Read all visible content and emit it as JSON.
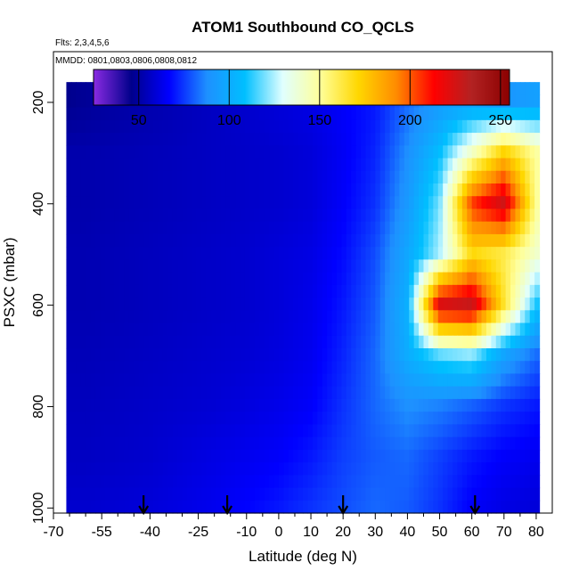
{
  "chart_data": {
    "type": "heatmap",
    "title": "ATOM1 Southbound CO_QCLS",
    "flights_note": "Flts: 2,3,4,5,6",
    "dates_note": "MMDD: 0801,0803,0806,0808,0812",
    "xlabel": "Latitude (deg N)",
    "ylabel": "PSXC (mbar)",
    "xlim": [
      -70,
      85
    ],
    "ylim": [
      1010,
      100
    ],
    "x_ticks": [
      -70,
      -55,
      -40,
      -25,
      -10,
      0,
      10,
      20,
      30,
      40,
      50,
      60,
      70,
      80
    ],
    "x_tick_labels": [
      "-70",
      "-55",
      "-40",
      "-25",
      "-10",
      "0",
      "10",
      "20",
      "30",
      "40",
      "50",
      "60",
      "70",
      "80"
    ],
    "x_minor_ticks": [
      -65,
      -60,
      -50,
      -45,
      -35,
      -30,
      -20,
      -15,
      -5,
      5,
      15,
      25,
      35,
      45,
      55,
      65,
      75
    ],
    "y_ticks": [
      200,
      400,
      600,
      800,
      1000
    ],
    "y_tick_labels": [
      "200",
      "400",
      "600",
      "800",
      "1000"
    ],
    "colorbar": {
      "range": [
        25,
        255
      ],
      "ticks": [
        50,
        100,
        150,
        200,
        250
      ],
      "tick_labels": [
        "50",
        "100",
        "150",
        "200",
        "250"
      ],
      "colors": [
        "#8a2be2",
        "#00008b",
        "#0000ff",
        "#1e90ff",
        "#00bfff",
        "#e0ffff",
        "#ffff99",
        "#ffd700",
        "#ff8c00",
        "#ff0000",
        "#b22222",
        "#8b0000"
      ]
    },
    "descent_markers_lat": [
      -42,
      -16,
      20,
      61
    ],
    "field": {
      "latitudes": [
        -70,
        -60,
        -50,
        -40,
        -30,
        -20,
        -10,
        0,
        10,
        20,
        30,
        40,
        50,
        60,
        70,
        80
      ],
      "pressures": [
        200,
        300,
        400,
        500,
        600,
        700,
        800,
        900,
        1000
      ],
      "co_ppb": [
        [
          45,
          48,
          50,
          52,
          54,
          56,
          58,
          60,
          62,
          66,
          70,
          82,
          92,
          95,
          90,
          95
        ],
        [
          52,
          52,
          53,
          54,
          55,
          56,
          57,
          58,
          60,
          65,
          72,
          88,
          108,
          142,
          175,
          150
        ],
        [
          52,
          52,
          53,
          54,
          55,
          56,
          57,
          58,
          60,
          66,
          74,
          92,
          120,
          205,
          228,
          150
        ],
        [
          53,
          53,
          54,
          55,
          56,
          57,
          58,
          60,
          62,
          68,
          78,
          98,
          125,
          170,
          160,
          140
        ],
        [
          53,
          53,
          54,
          55,
          56,
          57,
          58,
          60,
          63,
          70,
          80,
          102,
          225,
          230,
          165,
          110
        ],
        [
          54,
          54,
          55,
          56,
          57,
          58,
          59,
          61,
          64,
          72,
          82,
          100,
          115,
          120,
          95,
          82
        ],
        [
          55,
          55,
          56,
          57,
          58,
          59,
          61,
          63,
          66,
          74,
          82,
          88,
          85,
          80,
          74,
          70
        ],
        [
          56,
          56,
          57,
          58,
          60,
          62,
          64,
          66,
          70,
          76,
          80,
          82,
          76,
          70,
          66,
          64
        ],
        [
          58,
          58,
          59,
          60,
          62,
          64,
          67,
          70,
          74,
          78,
          82,
          80,
          74,
          66,
          62,
          60
        ]
      ]
    }
  }
}
